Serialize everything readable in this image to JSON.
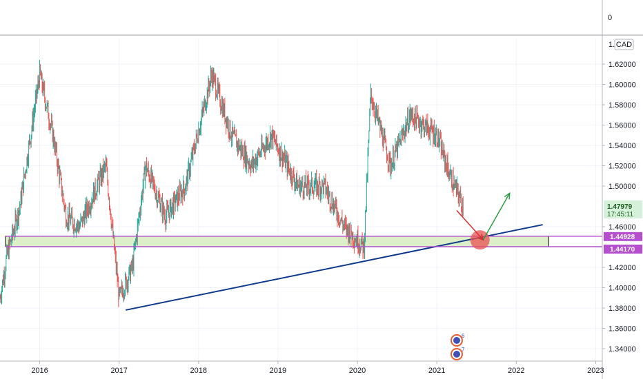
{
  "symbol": {
    "currency_label": "CAD",
    "osc_zero_label": "0"
  },
  "colors": {
    "up": "#26a69a",
    "down": "#ef5350",
    "trendline": "#0d3a8c",
    "zone_fill": "#dcefc9",
    "zone_border": "#000000",
    "zone_lines": "#b54fd0",
    "current_bg": "#d6f1d9",
    "current_text": "#1b5e20",
    "arrow_down": "#d32f2f",
    "arrow_up": "#2e9e44",
    "target_circle": "#ea5050"
  },
  "current_price": {
    "value": "1.47979",
    "countdown": "17:45:11"
  },
  "zone_prices": {
    "upper": "1.44928",
    "lower": "1.44170"
  },
  "events": [
    {
      "count": "6"
    },
    {
      "count": "7"
    }
  ],
  "chart_data": {
    "type": "candlestick",
    "title": "",
    "xlabel": "",
    "ylabel": "",
    "x_ticks": [
      "2016",
      "2017",
      "2018",
      "2019",
      "2020",
      "2021",
      "2022",
      "2023"
    ],
    "y_ticks": [
      "1.62000",
      "1.60000",
      "1.58000",
      "1.56000",
      "1.54000",
      "1.52000",
      "1.50000",
      "1.46000",
      "1.42000",
      "1.40000",
      "1.38000",
      "1.36000",
      "1.34000"
    ],
    "ylim": [
      1.33,
      1.635
    ],
    "xlim": [
      "2015-07",
      "2023-02"
    ],
    "price_path": [
      [
        "2015-07",
        1.39
      ],
      [
        "2015-08",
        1.43
      ],
      [
        "2015-10",
        1.48
      ],
      [
        "2016-01",
        1.61
      ],
      [
        "2016-03",
        1.55
      ],
      [
        "2016-05",
        1.47
      ],
      [
        "2016-07",
        1.46
      ],
      [
        "2016-09",
        1.49
      ],
      [
        "2016-11",
        1.52
      ],
      [
        "2017-01",
        1.39
      ],
      [
        "2017-03",
        1.42
      ],
      [
        "2017-05",
        1.52
      ],
      [
        "2017-08",
        1.47
      ],
      [
        "2017-11",
        1.5
      ],
      [
        "2018-03",
        1.61
      ],
      [
        "2018-06",
        1.55
      ],
      [
        "2018-09",
        1.52
      ],
      [
        "2018-12",
        1.55
      ],
      [
        "2019-04",
        1.5
      ],
      [
        "2019-08",
        1.5
      ],
      [
        "2019-11",
        1.46
      ],
      [
        "2020-02",
        1.44
      ],
      [
        "2020-03",
        1.59
      ],
      [
        "2020-06",
        1.52
      ],
      [
        "2020-09",
        1.57
      ],
      [
        "2021-01",
        1.55
      ],
      [
        "2021-03",
        1.51
      ],
      [
        "2021-05",
        1.48
      ]
    ],
    "trendline": {
      "from": [
        "2017-02",
        1.378
      ],
      "to": [
        "2022-05",
        1.462
      ]
    },
    "support_zone": {
      "upper": 1.44928,
      "lower": 1.4417,
      "from": "2015-07",
      "to": "2022-06"
    },
    "projection": {
      "down_arrow": {
        "from": [
          "2021-04",
          1.476
        ],
        "to": [
          "2021-08",
          1.447
        ]
      },
      "up_arrow": {
        "from": [
          "2021-08",
          1.447
        ],
        "to": [
          "2021-12",
          1.493
        ]
      },
      "target_circle": [
        "2021-07",
        1.447
      ]
    }
  }
}
